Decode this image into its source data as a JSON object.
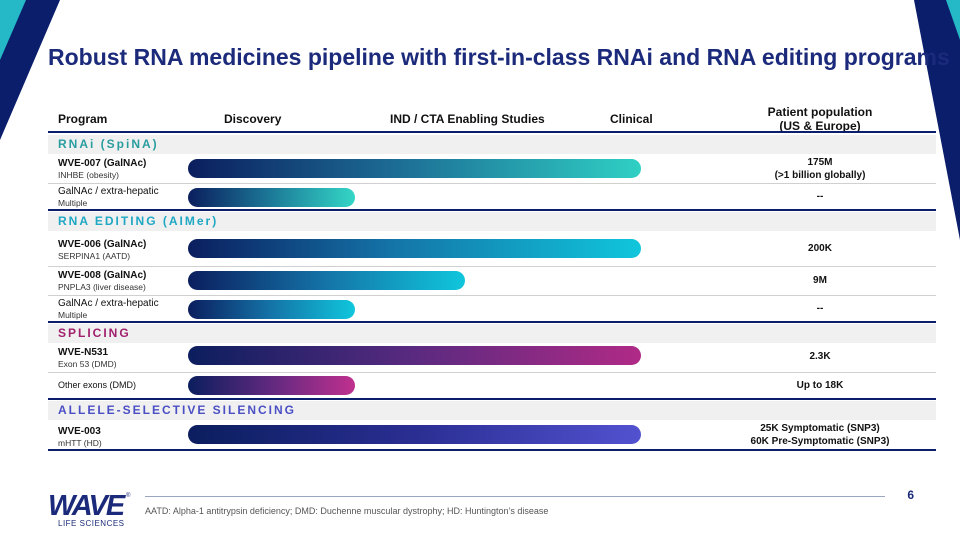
{
  "title": "Robust RNA medicines pipeline with first-in-class RNAi and RNA editing programs",
  "headers": {
    "program": "Program",
    "discovery": "Discovery",
    "ind": "IND / CTA Enabling Studies",
    "clinical": "Clinical",
    "population_line1": "Patient population",
    "population_line2": "(US & Europe)"
  },
  "sections": {
    "rnai": "RNAi (SpiNA)",
    "editing": "RNA EDITING (AIMer)",
    "splicing": "SPLICING",
    "allele": "ALLELE-SELECTIVE SILENCING"
  },
  "section_colors": {
    "rnai": "#2a9d9f",
    "editing": "#1fa7c4",
    "splicing": "#a0206e",
    "allele": "#4b4fc4"
  },
  "programs": {
    "p1": {
      "name": "WVE-007 (GalNAc)",
      "sub": "INHBE (obesity)",
      "pop1": "175M",
      "pop2": "(>1 billion globally)",
      "stage_progress": 1.0
    },
    "p2": {
      "name": "GalNAc / extra-hepatic",
      "sub": "Multiple",
      "pop1": "--",
      "stage_progress": 0.36
    },
    "p3": {
      "name": "WVE-006 (GalNAc)",
      "sub": "SERPINA1 (AATD)",
      "pop1": "200K",
      "stage_progress": 1.0
    },
    "p4": {
      "name": "WVE-008 (GalNAc)",
      "sub": "PNPLA3 (liver disease)",
      "pop1": "9M",
      "stage_progress": 0.6
    },
    "p5": {
      "name": "GalNAc / extra-hepatic",
      "sub": "Multiple",
      "pop1": "--",
      "stage_progress": 0.36
    },
    "p6": {
      "name": "WVE-N531",
      "sub": "Exon 53 (DMD)",
      "pop1": "2.3K",
      "stage_progress": 1.0
    },
    "p7": {
      "name": "Other exons (DMD)",
      "pop1": "Up to 18K",
      "stage_progress": 0.36
    },
    "p8": {
      "name": "WVE-003",
      "sub": "mHTT (HD)",
      "pop1": "25K Symptomatic (SNP3)",
      "pop2": "60K Pre-Symptomatic (SNP3)",
      "stage_progress": 1.0
    }
  },
  "footer": {
    "page_number": "6",
    "footnote": "AATD: Alpha-1 antitrypsin deficiency; DMD: Duchenne muscular dystrophy; HD: Huntington’s disease",
    "logo": "WAVE",
    "logo_reg": "®",
    "logo_sub": "LIFE SCIENCES"
  }
}
